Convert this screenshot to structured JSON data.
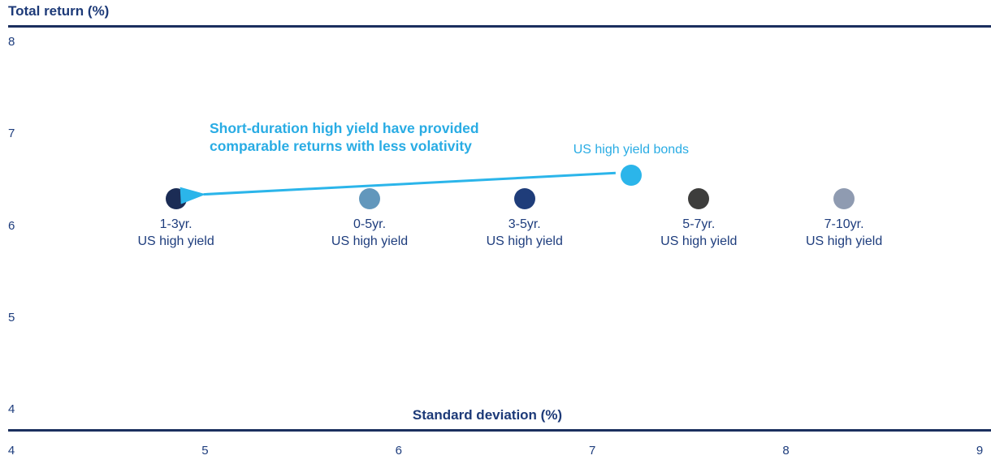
{
  "chart_data": {
    "type": "scatter",
    "title": "",
    "ylabel": "Total return (%)",
    "xlabel": "Standard deviation (%)",
    "xlim": [
      4,
      9
    ],
    "ylim": [
      4,
      8
    ],
    "x_ticks": [
      "4",
      "5",
      "6",
      "7",
      "8",
      "9"
    ],
    "y_ticks": [
      "8",
      "7",
      "6",
      "5",
      "4"
    ],
    "grid": "off",
    "legend": "none",
    "colors": {
      "axis_line": "#1b2f5e",
      "navy_text": "#1e3d7d",
      "accent_cyan": "#29ace4"
    },
    "points": [
      {
        "name": "1-3yr-us-high-yield",
        "label_line1": "1-3yr.",
        "label_line2": "US high yield",
        "x": 4.85,
        "y": 6.3,
        "color": "#1b2c55",
        "label_color": "#1e3d7d",
        "label_position": "below"
      },
      {
        "name": "0-5yr-us-high-yield",
        "label_line1": "0-5yr.",
        "label_line2": "US high yield",
        "x": 5.85,
        "y": 6.3,
        "color": "#6297bc",
        "label_color": "#1e3d7d",
        "label_position": "below"
      },
      {
        "name": "3-5yr-us-high-yield",
        "label_line1": "3-5yr.",
        "label_line2": "US high yield",
        "x": 6.65,
        "y": 6.3,
        "color": "#1f3d7a",
        "label_color": "#1e3d7d",
        "label_position": "below"
      },
      {
        "name": "5-7yr-us-high-yield",
        "label_line1": "5-7yr.",
        "label_line2": "US high yield",
        "x": 7.55,
        "y": 6.3,
        "color": "#3d3d3c",
        "label_color": "#1e3d7d",
        "label_position": "below"
      },
      {
        "name": "7-10yr-us-high-yield",
        "label_line1": "7-10yr.",
        "label_line2": "US high yield",
        "x": 8.3,
        "y": 6.3,
        "color": "#8f9bb1",
        "label_color": "#1e3d7d",
        "label_position": "below"
      },
      {
        "name": "us-high-yield-bonds",
        "label_line1": "US high yield bonds",
        "label_line2": "",
        "x": 7.2,
        "y": 6.55,
        "color": "#2bb5ea",
        "label_color": "#29ace4",
        "label_position": "above"
      }
    ],
    "annotation": {
      "text_line1": "Short-duration high yield have provided",
      "text_line2": "comparable returns with less volativity",
      "color": "#29ace4",
      "arrow": {
        "from_point": "us-high-yield-bonds",
        "to_point": "1-3yr-us-high-yield",
        "color": "#2bb5ea"
      }
    }
  }
}
